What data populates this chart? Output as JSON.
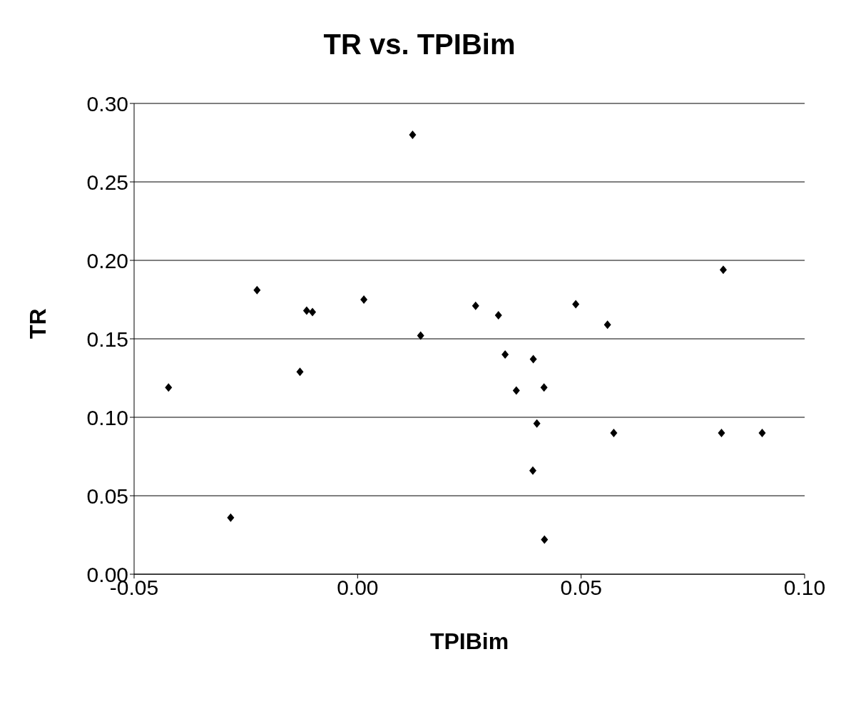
{
  "chart_data": {
    "type": "scatter",
    "title": "TR vs. TPIBim",
    "xlabel": "TPIBim",
    "ylabel": "TR",
    "x": [
      -0.0423,
      -0.0284,
      -0.0225,
      -0.0129,
      -0.0114,
      -0.0101,
      0.0014,
      0.0123,
      0.0141,
      0.0264,
      0.0315,
      0.033,
      0.0355,
      0.0393,
      0.0401,
      0.0392,
      0.0417,
      0.0418,
      0.0488,
      0.0559,
      0.0573,
      0.0814,
      0.0818,
      0.0905
    ],
    "values": [
      0.119,
      0.036,
      0.181,
      0.129,
      0.168,
      0.167,
      0.175,
      0.28,
      0.152,
      0.171,
      0.165,
      0.14,
      0.117,
      0.137,
      0.096,
      0.066,
      0.119,
      0.022,
      0.172,
      0.159,
      0.09,
      0.09,
      0.194,
      0.09
    ],
    "color": "#000000",
    "marker": "diamond",
    "grid": "y",
    "legend": false,
    "xlim": [
      -0.05,
      0.1
    ],
    "xticks": [
      {
        "value": -0.05,
        "label": "-0.05"
      },
      {
        "value": 0,
        "label": "0.00"
      },
      {
        "value": 0.05,
        "label": "0.05"
      },
      {
        "value": 0.1,
        "label": "0.10"
      }
    ],
    "ylim": [
      0,
      0.3
    ],
    "yticks": [
      {
        "value": 0,
        "label": "0.00"
      },
      {
        "value": 0.05,
        "label": "0.05"
      },
      {
        "value": 0.1,
        "label": "0.10"
      },
      {
        "value": 0.15,
        "label": "0.15"
      },
      {
        "value": 0.2,
        "label": "0.20"
      },
      {
        "value": 0.25,
        "label": "0.25"
      },
      {
        "value": 0.3,
        "label": "0.30"
      }
    ]
  }
}
